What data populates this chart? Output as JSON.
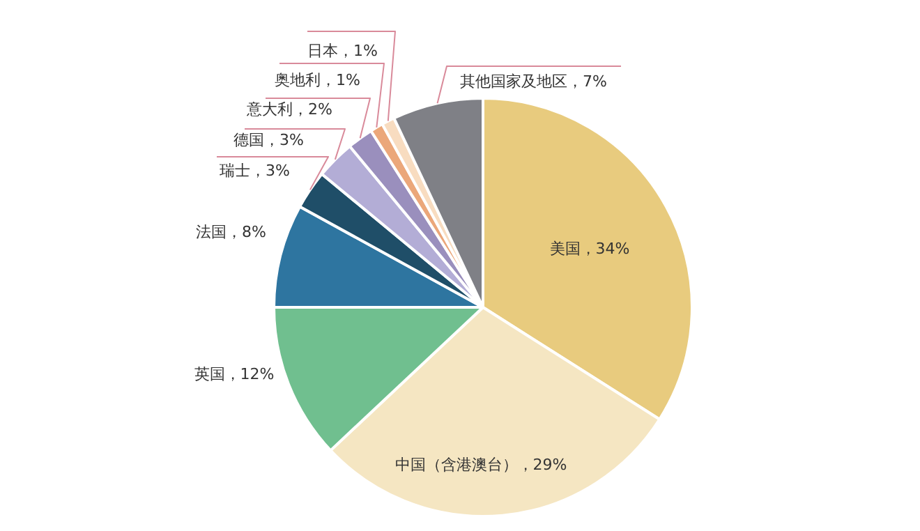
{
  "chart_data": {
    "type": "pie",
    "categories": [
      "美国",
      "中国（含港澳台）",
      "英国",
      "法国",
      "瑞士",
      "德国",
      "意大利",
      "奥地利",
      "日本",
      "其他国家及地区"
    ],
    "values": [
      34,
      29,
      12,
      8,
      3,
      3,
      2,
      1,
      1,
      7
    ],
    "colors": [
      "#e8cb7e",
      "#f5e6c2",
      "#70bf8f",
      "#2e75a0",
      "#1f4e68",
      "#b3add6",
      "#9a8fbd",
      "#eba77a",
      "#f8dcc0",
      "#7f8086"
    ],
    "value_labels": [
      "，34%",
      "，29%",
      "，12%",
      "，8%",
      "，3%",
      "，3%",
      "，2%",
      "，1%",
      "，1%",
      "，7%"
    ]
  }
}
